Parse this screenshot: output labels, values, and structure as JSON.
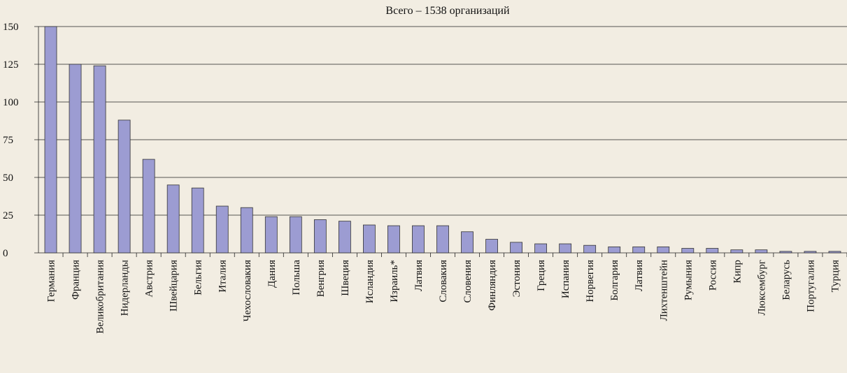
{
  "chart_data": {
    "type": "bar",
    "title": "Всего – 1538 организаций",
    "categories": [
      "Германия",
      "Франция",
      "Великобритания",
      "Нидерланды",
      "Австрия",
      "Швейцария",
      "Бельгия",
      "Италия",
      "Чехословакия",
      "Дания",
      "Польша",
      "Венгрия",
      "Швеция",
      "Исландия",
      "Израиль*",
      "Латвия",
      "Словакия",
      "Словения",
      "Финляндия",
      "Эстония",
      "Греция",
      "Испания",
      "Норвегия",
      "Болгария",
      "Латвия",
      "Лихтенштейн",
      "Румыния",
      "Россия",
      "Кипр",
      "Люксембург",
      "Беларусь",
      "Португалия",
      "Турция"
    ],
    "values": [
      150,
      125,
      124,
      88,
      62,
      45,
      43,
      31,
      30,
      24,
      24,
      22,
      21,
      18.5,
      18,
      18,
      18,
      14,
      9,
      7,
      6,
      6,
      5,
      4,
      4,
      4,
      3,
      3,
      2,
      2,
      1,
      1,
      1
    ],
    "color": "#9c9cd2",
    "ylim": [
      0,
      150
    ],
    "yticks": [
      0,
      25,
      50,
      75,
      100,
      125,
      150
    ],
    "grid": true
  }
}
